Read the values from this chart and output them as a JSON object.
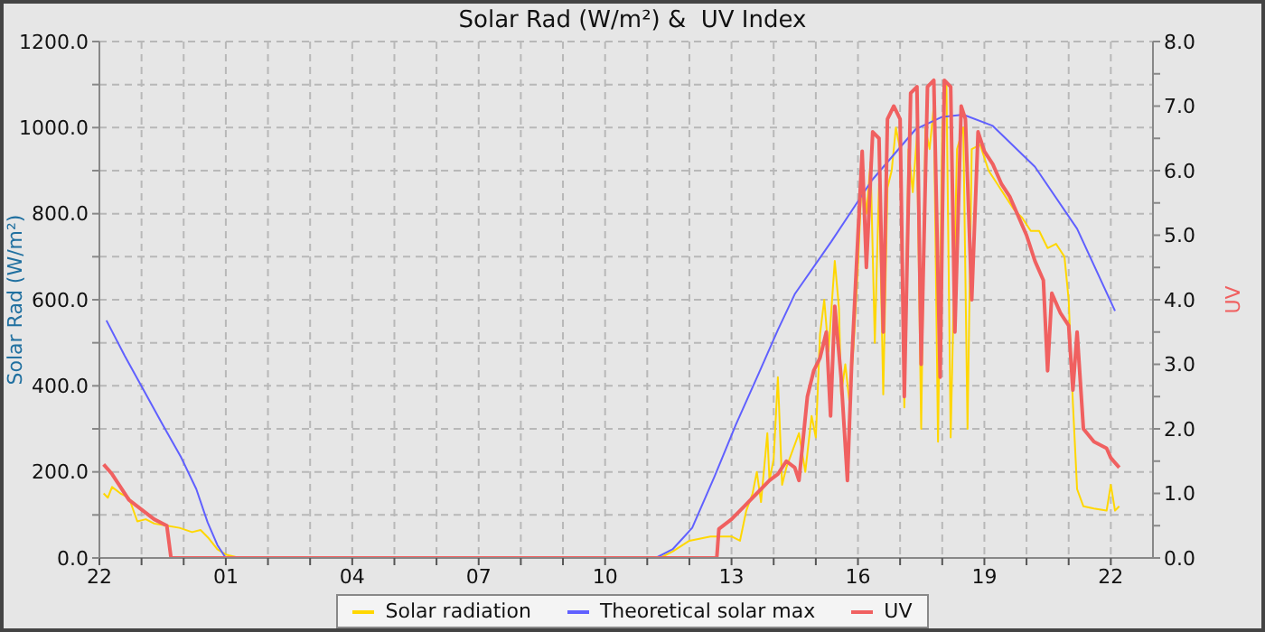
{
  "chart_data": {
    "type": "line",
    "title": "Solar Rad (W/m²) &  UV Index",
    "ylabel": "Solar Rad (W/m²)",
    "y2label": "UV",
    "xlim": [
      "--01-01T22:00",
      "--01-02T23:00"
    ],
    "xticks": [
      {
        "value": "--01-01T22:00",
        "label": "22"
      },
      {
        "value": "--01-01T23:00",
        "label": null
      },
      {
        "value": "--01-02T00:00",
        "label": null
      },
      {
        "value": "--01-02T01:00",
        "label": "01"
      },
      {
        "value": "--01-02T02:00",
        "label": null
      },
      {
        "value": "--01-02T03:00",
        "label": null
      },
      {
        "value": "--01-02T04:00",
        "label": "04"
      },
      {
        "value": "--01-02T05:00",
        "label": null
      },
      {
        "value": "--01-02T06:00",
        "label": null
      },
      {
        "value": "--01-02T07:00",
        "label": "07"
      },
      {
        "value": "--01-02T08:00",
        "label": null
      },
      {
        "value": "--01-02T09:00",
        "label": null
      },
      {
        "value": "--01-02T10:00",
        "label": "10"
      },
      {
        "value": "--01-02T11:00",
        "label": null
      },
      {
        "value": "--01-02T12:00",
        "label": null
      },
      {
        "value": "--01-02T13:00",
        "label": "13"
      },
      {
        "value": "--01-02T14:00",
        "label": null
      },
      {
        "value": "--01-02T15:00",
        "label": null
      },
      {
        "value": "--01-02T16:00",
        "label": "16"
      },
      {
        "value": "--01-02T17:00",
        "label": null
      },
      {
        "value": "--01-02T18:00",
        "label": null
      },
      {
        "value": "--01-02T19:00",
        "label": "19"
      },
      {
        "value": "--01-02T20:00",
        "label": null
      },
      {
        "value": "--01-02T21:00",
        "label": null
      },
      {
        "value": "--01-02T22:00",
        "label": "22"
      }
    ],
    "ylim": [
      0,
      1200
    ],
    "yticks": [
      {
        "value": 0,
        "label": "0.0"
      },
      {
        "value": 100,
        "label": null
      },
      {
        "value": 200,
        "label": "200.0"
      },
      {
        "value": 300,
        "label": null
      },
      {
        "value": 400,
        "label": "400.0"
      },
      {
        "value": 500,
        "label": null
      },
      {
        "value": 600,
        "label": "600.0"
      },
      {
        "value": 700,
        "label": null
      },
      {
        "value": 800,
        "label": "800.0"
      },
      {
        "value": 900,
        "label": null
      },
      {
        "value": 1000,
        "label": "1000.0"
      },
      {
        "value": 1100,
        "label": null
      },
      {
        "value": 1200,
        "label": "1200.0"
      }
    ],
    "y2lim": [
      0,
      8
    ],
    "y2ticks": [
      {
        "value": 0,
        "label": "0.0"
      },
      {
        "value": 0.5,
        "label": null
      },
      {
        "value": 1,
        "label": "1.0"
      },
      {
        "value": 1.5,
        "label": null
      },
      {
        "value": 2,
        "label": "2.0"
      },
      {
        "value": 2.5,
        "label": null
      },
      {
        "value": 3,
        "label": "3.0"
      },
      {
        "value": 3.5,
        "label": null
      },
      {
        "value": 4,
        "label": "4.0"
      },
      {
        "value": 4.5,
        "label": null
      },
      {
        "value": 5,
        "label": "5.0"
      },
      {
        "value": 5.5,
        "label": null
      },
      {
        "value": 6,
        "label": "6.0"
      },
      {
        "value": 6.5,
        "label": null
      },
      {
        "value": 7,
        "label": "7.0"
      },
      {
        "value": 7.5,
        "label": null
      },
      {
        "value": 8,
        "label": "8.0"
      }
    ],
    "grid": true,
    "legend": "bottom",
    "marker": "none",
    "line_style": "solid",
    "series": [
      {
        "name": "Solar radiation",
        "color": "#ffd700",
        "x": [
          "--01-01T22:06",
          "--01-01T22:12",
          "--01-01T22:18",
          "--01-01T22:30",
          "--01-01T22:42",
          "--01-01T22:54",
          "--01-01T23:06",
          "--01-01T23:18",
          "--01-01T23:36",
          "--01-01T23:54",
          "--01-02T00:12",
          "--01-02T00:24",
          "--01-02T00:36",
          "--01-02T00:48",
          "--01-02T01:00",
          "--01-02T01:12",
          "--01-02T01:18",
          "--01-02T11:18",
          "--01-02T11:36",
          "--01-02T12:00",
          "--01-02T12:30",
          "--01-02T13:00",
          "--01-02T13:12",
          "--01-02T13:21",
          "--01-02T13:30",
          "--01-02T13:36",
          "--01-02T13:42",
          "--01-02T13:51",
          "--01-02T13:54",
          "--01-02T14:00",
          "--01-02T14:06",
          "--01-02T14:12",
          "--01-02T14:18",
          "--01-02T14:27",
          "--01-02T14:36",
          "--01-02T14:45",
          "--01-02T14:54",
          "--01-02T15:00",
          "--01-02T15:06",
          "--01-02T15:12",
          "--01-02T15:18",
          "--01-02T15:27",
          "--01-02T15:33",
          "--01-02T15:36",
          "--01-02T15:42",
          "--01-02T15:48",
          "--01-02T15:54",
          "--01-02T16:00",
          "--01-02T16:06",
          "--01-02T16:12",
          "--01-02T16:18",
          "--01-02T16:24",
          "--01-02T16:30",
          "--01-02T16:36",
          "--01-02T16:42",
          "--01-02T16:48",
          "--01-02T16:54",
          "--01-02T17:00",
          "--01-02T17:06",
          "--01-02T17:12",
          "--01-02T17:18",
          "--01-02T17:24",
          "--01-02T17:30",
          "--01-02T17:36",
          "--01-02T17:42",
          "--01-02T17:48",
          "--01-02T17:54",
          "--01-02T18:00",
          "--01-02T18:06",
          "--01-02T18:12",
          "--01-02T18:21",
          "--01-02T18:30",
          "--01-02T18:36",
          "--01-02T18:42",
          "--01-02T18:54",
          "--01-02T19:06",
          "--01-02T19:18",
          "--01-02T19:30",
          "--01-02T19:42",
          "--01-02T19:54",
          "--01-02T20:06",
          "--01-02T20:18",
          "--01-02T20:30",
          "--01-02T20:42",
          "--01-02T20:54",
          "--01-02T21:00",
          "--01-02T21:06",
          "--01-02T21:12",
          "--01-02T21:21",
          "--01-02T21:36",
          "--01-02T21:54",
          "--01-02T22:00",
          "--01-02T22:06",
          "--01-02T22:12"
        ],
        "values": [
          150,
          140,
          165,
          150,
          140,
          85,
          90,
          80,
          75,
          70,
          60,
          65,
          45,
          20,
          8,
          3,
          0,
          0,
          15,
          40,
          50,
          50,
          40,
          110,
          150,
          200,
          130,
          290,
          180,
          230,
          420,
          170,
          210,
          250,
          290,
          200,
          330,
          280,
          520,
          600,
          480,
          690,
          580,
          380,
          450,
          360,
          500,
          680,
          900,
          800,
          920,
          500,
          870,
          380,
          860,
          900,
          1000,
          950,
          350,
          950,
          850,
          980,
          300,
          1000,
          950,
          1050,
          270,
          1000,
          1100,
          280,
          950,
          1000,
          300,
          950,
          960,
          900,
          870,
          840,
          810,
          790,
          760,
          760,
          720,
          730,
          700,
          600,
          360,
          160,
          120,
          115,
          110,
          170,
          110,
          120
        ]
      },
      {
        "name": "Theoretical solar max",
        "color": "#6060ff",
        "x": [
          "--01-01T22:10",
          "--01-01T22:36",
          "--01-01T23:04",
          "--01-01T23:30",
          "--01-01T23:56",
          "--01-02T00:18",
          "--01-02T00:34",
          "--01-02T00:48",
          "--01-02T01:00",
          "--01-02T11:12",
          "--01-02T11:36",
          "--01-02T12:04",
          "--01-02T12:36",
          "--01-02T13:06",
          "--01-02T13:39",
          "--01-02T14:06",
          "--01-02T14:30",
          "--01-02T15:22",
          "--01-02T16:20",
          "--01-02T17:22",
          "--01-02T18:00",
          "--01-02T18:30",
          "--01-02T19:12",
          "--01-02T20:12",
          "--01-02T21:12",
          "--01-02T22:06"
        ],
        "values": [
          552,
          470,
          387,
          310,
          235,
          160,
          83,
          30,
          0,
          0,
          20,
          70,
          190,
          309,
          430,
          530,
          613,
          735,
          878,
          996,
          1025,
          1030,
          1004,
          909,
          765,
          574
        ]
      },
      {
        "name": "UV",
        "color": "#f06060",
        "axis": "y2",
        "x": [
          "--01-01T22:06",
          "--01-01T22:18",
          "--01-01T22:30",
          "--01-01T22:42",
          "--01-01T23:00",
          "--01-01T23:18",
          "--01-01T23:36",
          "--01-01T23:42",
          "--01-02T12:39",
          "--01-02T12:42",
          "--01-02T13:00",
          "--01-02T13:18",
          "--01-02T13:36",
          "--01-02T13:54",
          "--01-02T14:06",
          "--01-02T14:18",
          "--01-02T14:30",
          "--01-02T14:36",
          "--01-02T14:48",
          "--01-02T14:57",
          "--01-02T15:06",
          "--01-02T15:15",
          "--01-02T15:21",
          "--01-02T15:27",
          "--01-02T15:36",
          "--01-02T15:45",
          "--01-02T15:51",
          "--01-02T16:00",
          "--01-02T16:06",
          "--01-02T16:12",
          "--01-02T16:21",
          "--01-02T16:30",
          "--01-02T16:36",
          "--01-02T16:42",
          "--01-02T16:51",
          "--01-02T17:00",
          "--01-02T17:06",
          "--01-02T17:15",
          "--01-02T17:24",
          "--01-02T17:30",
          "--01-02T17:39",
          "--01-02T17:48",
          "--01-02T17:57",
          "--01-02T18:03",
          "--01-02T18:12",
          "--01-02T18:18",
          "--01-02T18:27",
          "--01-02T18:33",
          "--01-02T18:42",
          "--01-02T18:51",
          "--01-02T19:00",
          "--01-02T19:12",
          "--01-02T19:24",
          "--01-02T19:36",
          "--01-02T19:48",
          "--01-02T20:00",
          "--01-02T20:12",
          "--01-02T20:24",
          "--01-02T20:30",
          "--01-02T20:36",
          "--01-02T20:48",
          "--01-02T21:00",
          "--01-02T21:06",
          "--01-02T21:12",
          "--01-02T21:21",
          "--01-02T21:36",
          "--01-02T21:54",
          "--01-02T22:00",
          "--01-02T22:12"
        ],
        "values": [
          1.45,
          1.3,
          1.1,
          0.9,
          0.75,
          0.6,
          0.5,
          0,
          0,
          0.45,
          0.6,
          0.8,
          1.0,
          1.2,
          1.3,
          1.5,
          1.4,
          1.2,
          2.5,
          2.9,
          3.1,
          3.5,
          2.2,
          3.9,
          2.8,
          1.2,
          3.0,
          5.0,
          6.3,
          4.5,
          6.6,
          6.5,
          3.5,
          6.8,
          7.0,
          6.8,
          2.5,
          7.2,
          7.3,
          3.0,
          7.3,
          7.4,
          2.8,
          7.4,
          7.3,
          3.5,
          7.0,
          6.8,
          4.0,
          6.6,
          6.3,
          6.1,
          5.8,
          5.6,
          5.3,
          5.0,
          4.6,
          4.3,
          2.9,
          4.1,
          3.8,
          3.6,
          2.6,
          3.5,
          2.0,
          1.8,
          1.7,
          1.55,
          1.4
        ]
      }
    ]
  }
}
